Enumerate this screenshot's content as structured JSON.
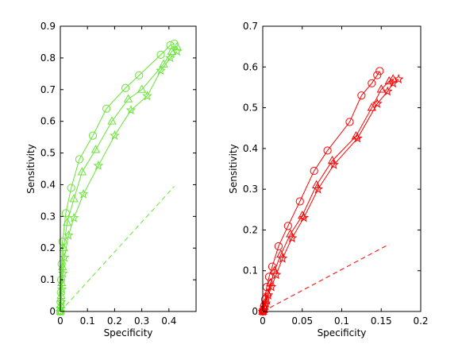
{
  "chart_data": [
    {
      "type": "line",
      "color": "#66e633",
      "xlabel": "Specificity",
      "ylabel": "Sensitivity",
      "xlim": [
        0,
        0.5
      ],
      "ylim": [
        0,
        0.9
      ],
      "xticks": [
        0,
        0.1,
        0.2,
        0.3,
        0.4
      ],
      "xtick_labels": [
        "0",
        "0.1",
        "0.2",
        "0.3",
        "0.4"
      ],
      "yticks": [
        0,
        0.1,
        0.2,
        0.3,
        0.4,
        0.5,
        0.6,
        0.7,
        0.8,
        0.9
      ],
      "ytick_labels": [
        "0",
        "0.1",
        "0.2",
        "0.3",
        "0.4",
        "0.5",
        "0.6",
        "0.7",
        "0.8",
        "0.9"
      ],
      "series": [
        {
          "marker": "circle",
          "points": [
            [
              0,
              0
            ],
            [
              0.001,
              0.03
            ],
            [
              0.002,
              0.06
            ],
            [
              0.003,
              0.1
            ],
            [
              0.005,
              0.15
            ],
            [
              0.008,
              0.22
            ],
            [
              0.02,
              0.31
            ],
            [
              0.04,
              0.39
            ],
            [
              0.07,
              0.48
            ],
            [
              0.12,
              0.555
            ],
            [
              0.17,
              0.64
            ],
            [
              0.24,
              0.705
            ],
            [
              0.29,
              0.745
            ],
            [
              0.37,
              0.81
            ],
            [
              0.405,
              0.84
            ],
            [
              0.42,
              0.845
            ]
          ]
        },
        {
          "marker": "triangle",
          "points": [
            [
              0,
              0
            ],
            [
              0.001,
              0.02
            ],
            [
              0.003,
              0.05
            ],
            [
              0.005,
              0.09
            ],
            [
              0.008,
              0.14
            ],
            [
              0.012,
              0.2
            ],
            [
              0.025,
              0.28
            ],
            [
              0.05,
              0.355
            ],
            [
              0.08,
              0.44
            ],
            [
              0.13,
              0.51
            ],
            [
              0.19,
              0.6
            ],
            [
              0.25,
              0.67
            ],
            [
              0.3,
              0.7
            ],
            [
              0.38,
              0.78
            ],
            [
              0.41,
              0.82
            ],
            [
              0.43,
              0.835
            ]
          ]
        },
        {
          "marker": "star",
          "points": [
            [
              0,
              0
            ],
            [
              0.001,
              0.01
            ],
            [
              0.003,
              0.03
            ],
            [
              0.006,
              0.07
            ],
            [
              0.01,
              0.12
            ],
            [
              0.015,
              0.17
            ],
            [
              0.03,
              0.24
            ],
            [
              0.05,
              0.295
            ],
            [
              0.085,
              0.37
            ],
            [
              0.14,
              0.46
            ],
            [
              0.2,
              0.555
            ],
            [
              0.26,
              0.635
            ],
            [
              0.32,
              0.68
            ],
            [
              0.37,
              0.76
            ],
            [
              0.405,
              0.8
            ],
            [
              0.43,
              0.82
            ]
          ]
        },
        {
          "marker": "none",
          "dashed": true,
          "points": [
            [
              0,
              0
            ],
            [
              0.42,
              0.395
            ]
          ]
        }
      ]
    },
    {
      "type": "line",
      "color": "#ff0000",
      "xlabel": "Specificity",
      "ylabel": "Sensitivity",
      "xlim": [
        0,
        0.2
      ],
      "ylim": [
        0,
        0.7
      ],
      "xticks": [
        0,
        0.05,
        0.1,
        0.15,
        0.2
      ],
      "xtick_labels": [
        "0",
        "0.05",
        "0.1",
        "0.15",
        "0.2"
      ],
      "yticks": [
        0,
        0.1,
        0.2,
        0.3,
        0.4,
        0.5,
        0.6,
        0.7
      ],
      "ytick_labels": [
        "0",
        "0.1",
        "0.2",
        "0.3",
        "0.4",
        "0.5",
        "0.6",
        "0.7"
      ],
      "series": [
        {
          "marker": "circle",
          "points": [
            [
              0,
              0
            ],
            [
              0.001,
              0.005
            ],
            [
              0.002,
              0.015
            ],
            [
              0.003,
              0.03
            ],
            [
              0.005,
              0.06
            ],
            [
              0.008,
              0.085
            ],
            [
              0.012,
              0.11
            ],
            [
              0.02,
              0.16
            ],
            [
              0.032,
              0.21
            ],
            [
              0.047,
              0.27
            ],
            [
              0.065,
              0.345
            ],
            [
              0.082,
              0.395
            ],
            [
              0.11,
              0.465
            ],
            [
              0.125,
              0.53
            ],
            [
              0.138,
              0.56
            ],
            [
              0.145,
              0.58
            ],
            [
              0.148,
              0.59
            ]
          ]
        },
        {
          "marker": "triangle",
          "points": [
            [
              0,
              0
            ],
            [
              0.001,
              0.004
            ],
            [
              0.002,
              0.012
            ],
            [
              0.004,
              0.025
            ],
            [
              0.006,
              0.045
            ],
            [
              0.01,
              0.07
            ],
            [
              0.015,
              0.1
            ],
            [
              0.023,
              0.14
            ],
            [
              0.035,
              0.19
            ],
            [
              0.05,
              0.235
            ],
            [
              0.068,
              0.31
            ],
            [
              0.088,
              0.37
            ],
            [
              0.118,
              0.43
            ],
            [
              0.138,
              0.5
            ],
            [
              0.15,
              0.545
            ],
            [
              0.16,
              0.565
            ],
            [
              0.165,
              0.57
            ]
          ]
        },
        {
          "marker": "star",
          "points": [
            [
              0,
              0
            ],
            [
              0.001,
              0.003
            ],
            [
              0.002,
              0.01
            ],
            [
              0.004,
              0.02
            ],
            [
              0.007,
              0.04
            ],
            [
              0.011,
              0.06
            ],
            [
              0.017,
              0.09
            ],
            [
              0.025,
              0.13
            ],
            [
              0.037,
              0.18
            ],
            [
              0.052,
              0.23
            ],
            [
              0.07,
              0.3
            ],
            [
              0.09,
              0.36
            ],
            [
              0.12,
              0.425
            ],
            [
              0.145,
              0.51
            ],
            [
              0.158,
              0.54
            ],
            [
              0.165,
              0.56
            ],
            [
              0.172,
              0.57
            ]
          ]
        },
        {
          "marker": "none",
          "dashed": true,
          "points": [
            [
              0,
              0
            ],
            [
              0.16,
              0.165
            ]
          ]
        }
      ]
    }
  ]
}
